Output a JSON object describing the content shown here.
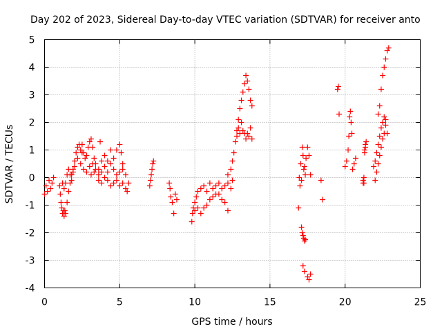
{
  "chart_data": {
    "type": "scatter",
    "title": "Day 202 of 2023, Sidereal Day-to-day VTEC variation (SDTVAR) for receiver anto",
    "xlabel": "GPS time / hours",
    "ylabel": "SDTVAR / TECUs",
    "xlim": [
      0,
      25
    ],
    "ylim": [
      -4,
      5
    ],
    "xticks": [
      0,
      5,
      10,
      15,
      20,
      25
    ],
    "yticks": [
      -4,
      -3,
      -2,
      -1,
      0,
      1,
      2,
      3,
      4,
      5
    ],
    "grid": true,
    "marker": "+",
    "colors": {
      "series": "#ff0000",
      "grid": "#a0a0a0",
      "axis": "#000000"
    },
    "series": [
      {
        "name": "SDTVAR",
        "x": [
          0.0,
          0.1,
          0.2,
          0.3,
          0.4,
          0.5,
          0.6,
          1.0,
          1.05,
          1.1,
          1.15,
          1.2,
          1.25,
          1.3,
          1.35,
          1.4,
          1.5,
          1.6,
          1.7,
          1.8,
          1.9,
          2.0,
          2.1,
          2.2,
          2.3,
          2.4,
          2.5,
          2.6,
          2.7,
          2.8,
          2.9,
          3.0,
          3.1,
          3.2,
          3.3,
          3.4,
          3.6,
          3.8,
          4.0,
          4.2,
          4.4,
          4.6,
          4.8,
          5.0,
          5.1,
          5.2,
          1.2,
          1.3,
          1.4,
          1.5,
          1.6,
          1.7,
          1.8,
          1.9,
          2.0,
          2.2,
          2.4,
          2.6,
          2.8,
          3.0,
          3.2,
          3.4,
          3.6,
          3.8,
          4.0,
          4.2,
          4.4,
          4.6,
          4.8,
          5.0,
          5.2,
          5.4,
          5.6,
          3.6,
          3.8,
          4.0,
          4.2,
          4.4,
          4.6,
          4.8,
          5.0,
          5.2,
          5.4,
          5.5,
          2.5,
          3.1,
          3.3,
          3.7,
          7.0,
          7.05,
          7.1,
          7.15,
          7.2,
          7.25,
          8.3,
          8.35,
          8.4,
          8.5,
          8.6,
          8.7,
          8.8,
          9.8,
          9.85,
          9.9,
          10.0,
          10.1,
          10.2,
          10.4,
          10.6,
          10.8,
          11.0,
          11.2,
          11.4,
          11.6,
          11.8,
          12.0,
          12.2,
          12.4,
          12.5,
          10.0,
          10.2,
          10.4,
          10.6,
          10.8,
          11.0,
          11.2,
          11.4,
          11.6,
          11.8,
          12.0,
          12.2,
          12.2,
          12.4,
          12.5,
          12.6,
          12.7,
          12.8,
          12.9,
          13.0,
          13.1,
          13.2,
          13.3,
          13.4,
          13.5,
          13.6,
          13.7,
          13.8,
          12.8,
          12.9,
          13.0,
          13.1,
          13.2,
          13.3,
          13.4,
          13.5,
          13.6,
          13.7,
          13.8,
          16.9,
          16.95,
          17.0,
          17.05,
          17.1,
          17.15,
          17.2,
          17.25,
          17.3,
          17.35,
          17.4,
          17.5,
          17.6,
          17.7,
          17.1,
          17.15,
          17.2,
          17.25,
          17.3,
          17.35,
          17.2,
          17.3,
          17.5,
          17.6,
          17.7,
          18.4,
          18.5,
          19.5,
          19.55,
          19.6,
          20.0,
          20.1,
          20.2,
          20.25,
          20.3,
          20.35,
          20.4,
          20.45,
          20.5,
          20.6,
          20.7,
          21.2,
          21.25,
          21.3,
          21.35,
          21.4,
          21.2,
          21.25,
          21.3,
          21.35,
          21.9,
          22.0,
          22.1,
          22.2,
          22.3,
          22.4,
          22.5,
          22.6,
          22.7,
          22.8,
          22.2,
          22.3,
          22.4,
          22.5,
          22.6,
          22.7,
          22.8,
          22.9,
          22.0,
          22.1,
          22.2,
          22.3,
          22.4,
          22.5,
          22.6,
          22.7
        ],
        "y": [
          -0.6,
          -0.3,
          -0.5,
          -0.1,
          -0.4,
          -0.2,
          0.0,
          -0.3,
          -0.6,
          -0.9,
          -1.1,
          -1.3,
          -1.2,
          -1.4,
          -1.2,
          -1.3,
          -0.9,
          -0.5,
          -0.2,
          0.1,
          0.3,
          0.6,
          0.9,
          1.1,
          1.2,
          1.0,
          1.2,
          0.9,
          0.7,
          0.8,
          1.1,
          1.3,
          1.4,
          1.1,
          0.7,
          0.5,
          0.3,
          0.6,
          0.8,
          0.6,
          1.0,
          0.7,
          1.0,
          1.2,
          0.9,
          0.5,
          -0.2,
          -0.4,
          -0.2,
          0.1,
          0.3,
          0.1,
          -0.1,
          0.2,
          0.4,
          0.7,
          0.5,
          0.3,
          0.2,
          0.4,
          0.5,
          0.3,
          0.1,
          0.2,
          0.4,
          0.2,
          0.5,
          0.3,
          0.1,
          0.2,
          0.3,
          0.1,
          -0.2,
          -0.1,
          -0.2,
          0.0,
          -0.1,
          -0.3,
          -0.2,
          -0.1,
          -0.3,
          -0.2,
          -0.4,
          -0.5,
          0.9,
          0.1,
          0.2,
          1.3,
          -0.3,
          -0.1,
          0.1,
          0.3,
          0.5,
          0.6,
          -0.2,
          -0.4,
          -0.7,
          -0.9,
          -1.3,
          -0.6,
          -0.8,
          -1.6,
          -1.3,
          -1.1,
          -0.9,
          -0.7,
          -0.5,
          -0.4,
          -0.3,
          -0.5,
          -0.2,
          -0.4,
          -0.3,
          -0.2,
          -0.4,
          -0.3,
          -0.2,
          -0.4,
          -0.1,
          -1.2,
          -1.1,
          -1.3,
          -1.1,
          -1.0,
          -0.8,
          -0.7,
          -0.6,
          -0.6,
          -0.8,
          -0.9,
          -1.2,
          0.1,
          0.3,
          0.6,
          0.9,
          1.3,
          1.7,
          2.1,
          2.5,
          2.8,
          3.1,
          3.4,
          3.7,
          3.5,
          3.2,
          2.8,
          2.6,
          1.5,
          1.8,
          1.6,
          2.0,
          1.7,
          1.6,
          1.4,
          1.6,
          1.5,
          1.8,
          1.4,
          -1.1,
          0.0,
          -0.3,
          0.5,
          -0.1,
          1.1,
          0.8,
          0.3,
          0.4,
          0.1,
          0.7,
          1.1,
          0.8,
          0.1,
          -1.8,
          -2.0,
          -2.1,
          -2.2,
          -2.3,
          -2.25,
          -3.2,
          -3.4,
          -3.6,
          -3.7,
          -3.5,
          -0.1,
          -0.8,
          3.2,
          3.3,
          2.3,
          0.4,
          0.6,
          1.0,
          1.5,
          2.2,
          2.4,
          2.0,
          1.6,
          0.3,
          0.5,
          0.7,
          -0.2,
          0.0,
          1.0,
          1.2,
          1.3,
          -0.1,
          -0.2,
          0.9,
          1.1,
          0.4,
          0.6,
          0.9,
          1.2,
          1.5,
          1.8,
          2.0,
          2.2,
          2.1,
          1.6,
          2.3,
          2.6,
          3.2,
          3.7,
          4.0,
          4.3,
          4.6,
          4.7,
          -0.1,
          0.2,
          0.5,
          0.8,
          1.1,
          1.4,
          1.6,
          1.9
        ]
      }
    ]
  }
}
